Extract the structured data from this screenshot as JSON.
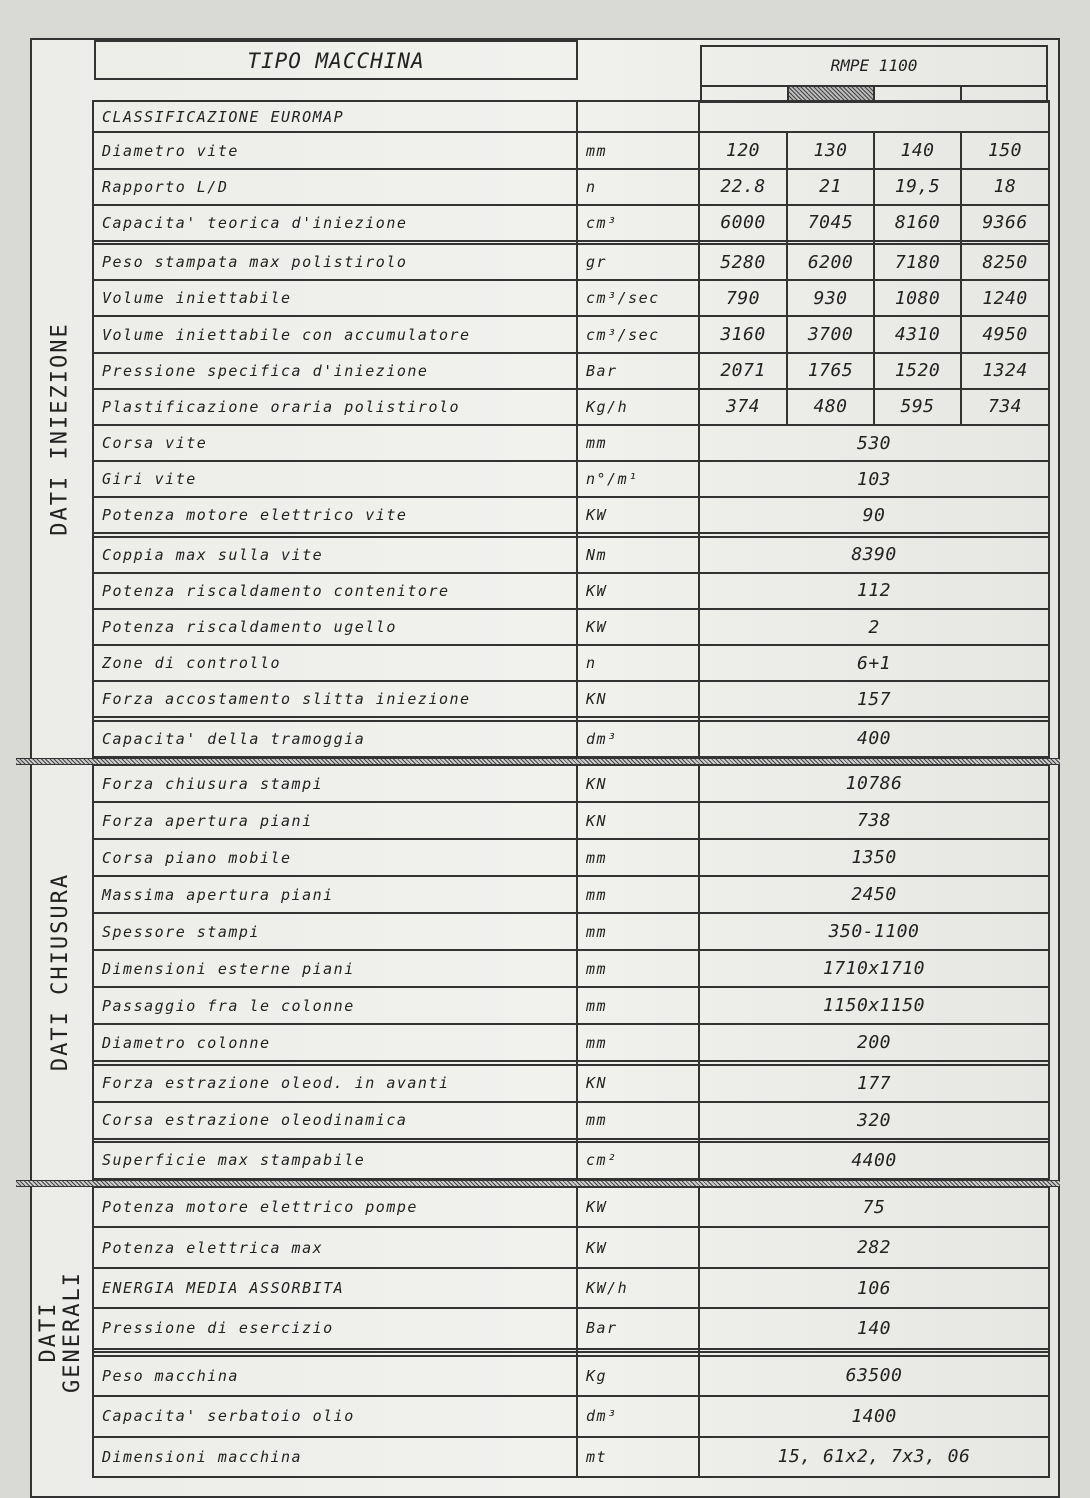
{
  "header": {
    "title": "TIPO MACCHINA",
    "model": "RMPE 1100"
  },
  "sections": [
    {
      "label": "DATI INIEZIONE",
      "rows": [
        {
          "label": "CLASSIFICAZIONE EUROMAP",
          "unit": "",
          "values": [
            ""
          ]
        },
        {
          "label": "Diametro vite",
          "unit": "mm",
          "values": [
            "120",
            "130",
            "140",
            "150"
          ]
        },
        {
          "label": "Rapporto L/D",
          "unit": "n",
          "values": [
            "22.8",
            "21",
            "19,5",
            "18"
          ]
        },
        {
          "label": "Capacita' teorica d'iniezione",
          "unit": "cm³",
          "values": [
            "6000",
            "7045",
            "8160",
            "9366"
          ]
        },
        {
          "label": "",
          "unit": "",
          "values": [
            "",
            "",
            "",
            ""
          ]
        },
        {
          "label": "Peso stampata max polistirolo",
          "unit": "gr",
          "values": [
            "5280",
            "6200",
            "7180",
            "8250"
          ]
        },
        {
          "label": "Volume iniettabile",
          "unit": "cm³/sec",
          "values": [
            "790",
            "930",
            "1080",
            "1240"
          ]
        },
        {
          "label": "Volume iniettabile con accumulatore",
          "unit": "cm³/sec",
          "values": [
            "3160",
            "3700",
            "4310",
            "4950"
          ]
        },
        {
          "label": "Pressione specifica d'iniezione",
          "unit": "Bar",
          "values": [
            "2071",
            "1765",
            "1520",
            "1324"
          ]
        },
        {
          "label": "Plastificazione oraria polistirolo",
          "unit": "Kg/h",
          "values": [
            "374",
            "480",
            "595",
            "734"
          ]
        },
        {
          "label": "Corsa vite",
          "unit": "mm",
          "values": [
            "530"
          ]
        },
        {
          "label": "Giri vite",
          "unit": "n°/m¹",
          "values": [
            "103"
          ]
        },
        {
          "label": "Potenza motore elettrico  vite",
          "unit": "KW",
          "values": [
            "90"
          ]
        },
        {
          "label": "",
          "unit": "",
          "values": [
            ""
          ]
        },
        {
          "label": "Coppia max sulla vite",
          "unit": "Nm",
          "values": [
            "8390"
          ]
        },
        {
          "label": "Potenza riscaldamento contenitore",
          "unit": "KW",
          "values": [
            "112"
          ]
        },
        {
          "label": "Potenza riscaldamento ugello",
          "unit": "KW",
          "values": [
            "2"
          ]
        },
        {
          "label": "Zone di controllo",
          "unit": "n",
          "values": [
            "6+1"
          ]
        },
        {
          "label": "Forza accostamento slitta iniezione",
          "unit": "KN",
          "values": [
            "157"
          ]
        },
        {
          "label": "",
          "unit": "",
          "values": [
            ""
          ]
        },
        {
          "label": "Capacita' della tramoggia",
          "unit": "dm³",
          "values": [
            "400"
          ]
        }
      ]
    },
    {
      "label": "DATI CHIUSURA",
      "rows": [
        {
          "label": "Forza chiusura stampi",
          "unit": "KN",
          "values": [
            "10786"
          ]
        },
        {
          "label": "Forza apertura piani",
          "unit": "KN",
          "values": [
            "738"
          ]
        },
        {
          "label": "Corsa piano mobile",
          "unit": "mm",
          "values": [
            "1350"
          ]
        },
        {
          "label": "Massima apertura piani",
          "unit": "mm",
          "values": [
            "2450"
          ]
        },
        {
          "label": "Spessore stampi",
          "unit": "mm",
          "values": [
            "350-1100"
          ]
        },
        {
          "label": "Dimensioni esterne piani",
          "unit": "mm",
          "values": [
            "1710x1710"
          ]
        },
        {
          "label": "Passaggio fra le colonne",
          "unit": "mm",
          "values": [
            "1150x1150"
          ]
        },
        {
          "label": "Diametro colonne",
          "unit": "mm",
          "values": [
            "200"
          ]
        },
        {
          "label": "",
          "unit": "",
          "values": [
            ""
          ]
        },
        {
          "label": "Forza estrazione oleod. in avanti",
          "unit": "KN",
          "values": [
            "177"
          ]
        },
        {
          "label": "Corsa estrazione oleodinamica",
          "unit": "mm",
          "values": [
            "320"
          ]
        },
        {
          "label": "",
          "unit": "",
          "values": [
            ""
          ]
        },
        {
          "label": "Superficie max stampabile",
          "unit": "cm²",
          "values": [
            "4400"
          ]
        }
      ]
    },
    {
      "label": "DATI\nGENERALI",
      "rows": [
        {
          "label": "Potenza motore elettrico pompe",
          "unit": "KW",
          "values": [
            "75"
          ]
        },
        {
          "label": "Potenza elettrica max",
          "unit": "KW",
          "values": [
            "282"
          ]
        },
        {
          "label": "ENERGIA MEDIA ASSORBITA",
          "unit": "KW/h",
          "values": [
            "106"
          ]
        },
        {
          "label": "Pressione di esercizio",
          "unit": "Bar",
          "values": [
            "140"
          ]
        },
        {
          "label": "",
          "unit": "",
          "values": [
            ""
          ]
        },
        {
          "label": "",
          "unit": "",
          "values": [
            ""
          ]
        },
        {
          "label": "Peso macchina",
          "unit": "Kg",
          "values": [
            "63500"
          ]
        },
        {
          "label": "Capacita' serbatoio olio",
          "unit": "dm³",
          "values": [
            "1400"
          ]
        },
        {
          "label": "Dimensioni macchina",
          "unit": "mt",
          "values": [
            "15, 61x2, 7x3, 06"
          ]
        }
      ]
    }
  ]
}
